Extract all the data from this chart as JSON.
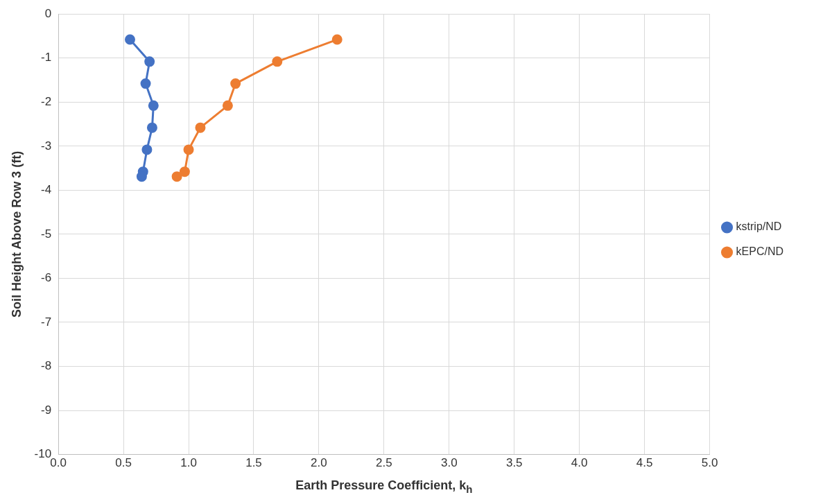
{
  "chart_data": {
    "type": "line",
    "xlabel": "Earth Pressure Coefficient, k$_{h}$",
    "ylabel": "Soil Height Above Row 3 (ft)",
    "xlim": [
      0,
      5
    ],
    "xticks": [
      {
        "value": 0,
        "label": "0.0"
      },
      {
        "value": 0.5,
        "label": "0.5"
      },
      {
        "value": 1,
        "label": "1.0"
      },
      {
        "value": 1.5,
        "label": "1.5"
      },
      {
        "value": 2,
        "label": "2.0"
      },
      {
        "value": 2.5,
        "label": "2.5"
      },
      {
        "value": 3,
        "label": "3.0"
      },
      {
        "value": 3.5,
        "label": "3.5"
      },
      {
        "value": 4,
        "label": "4.0"
      },
      {
        "value": 4.5,
        "label": "4.5"
      },
      {
        "value": 5,
        "label": "5.0"
      }
    ],
    "ylim": [
      -10,
      0
    ],
    "yticks": [
      0,
      -1,
      -2,
      -3,
      -4,
      -5,
      -6,
      -7,
      -8,
      -9,
      -10
    ],
    "grid": true,
    "legend": "right",
    "marker": "circle",
    "line_style": "solid",
    "series": [
      {
        "name": "kstrip/ND",
        "color": "#4472c4",
        "x": [
          0.55,
          0.7,
          0.67,
          0.73,
          0.72,
          0.68,
          0.65,
          0.64
        ],
        "values": [
          -0.58,
          -1.08,
          -1.58,
          -2.08,
          -2.58,
          -3.08,
          -3.58,
          -3.69
        ]
      },
      {
        "name": "kEPC/ND",
        "color": "#ed7d31",
        "x": [
          2.14,
          1.68,
          1.36,
          1.3,
          1.09,
          1.0,
          0.97,
          0.91
        ],
        "values": [
          -0.58,
          -1.08,
          -1.58,
          -2.08,
          -2.58,
          -3.08,
          -3.58,
          -3.69
        ]
      }
    ]
  }
}
